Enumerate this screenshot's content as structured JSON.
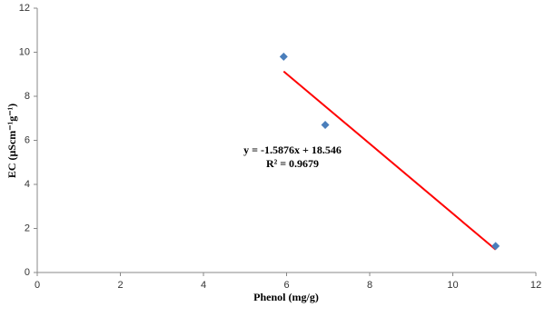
{
  "chart_data": {
    "type": "scatter",
    "x_label": "Phenol (mg/g)",
    "y_label": "EC (μScm⁻¹g⁻¹)",
    "x": [
      5.93,
      6.93,
      11.03
    ],
    "values": [
      9.8,
      6.7,
      1.2
    ],
    "color": "#4a7ebb",
    "trendline": {
      "color": "#ff0000",
      "x": [
        5.93,
        11.03
      ],
      "values": [
        9.13,
        1.04
      ]
    },
    "annotations": [
      "y = -1.5876x + 18.546",
      "R² = 0.9679"
    ],
    "xlim": [
      0,
      12
    ],
    "xticks": [
      0,
      2,
      4,
      6,
      8,
      10,
      12
    ],
    "ylim": [
      0,
      12
    ],
    "yticks": [
      0,
      2,
      4,
      6,
      8,
      10,
      12
    ],
    "grid": false
  }
}
